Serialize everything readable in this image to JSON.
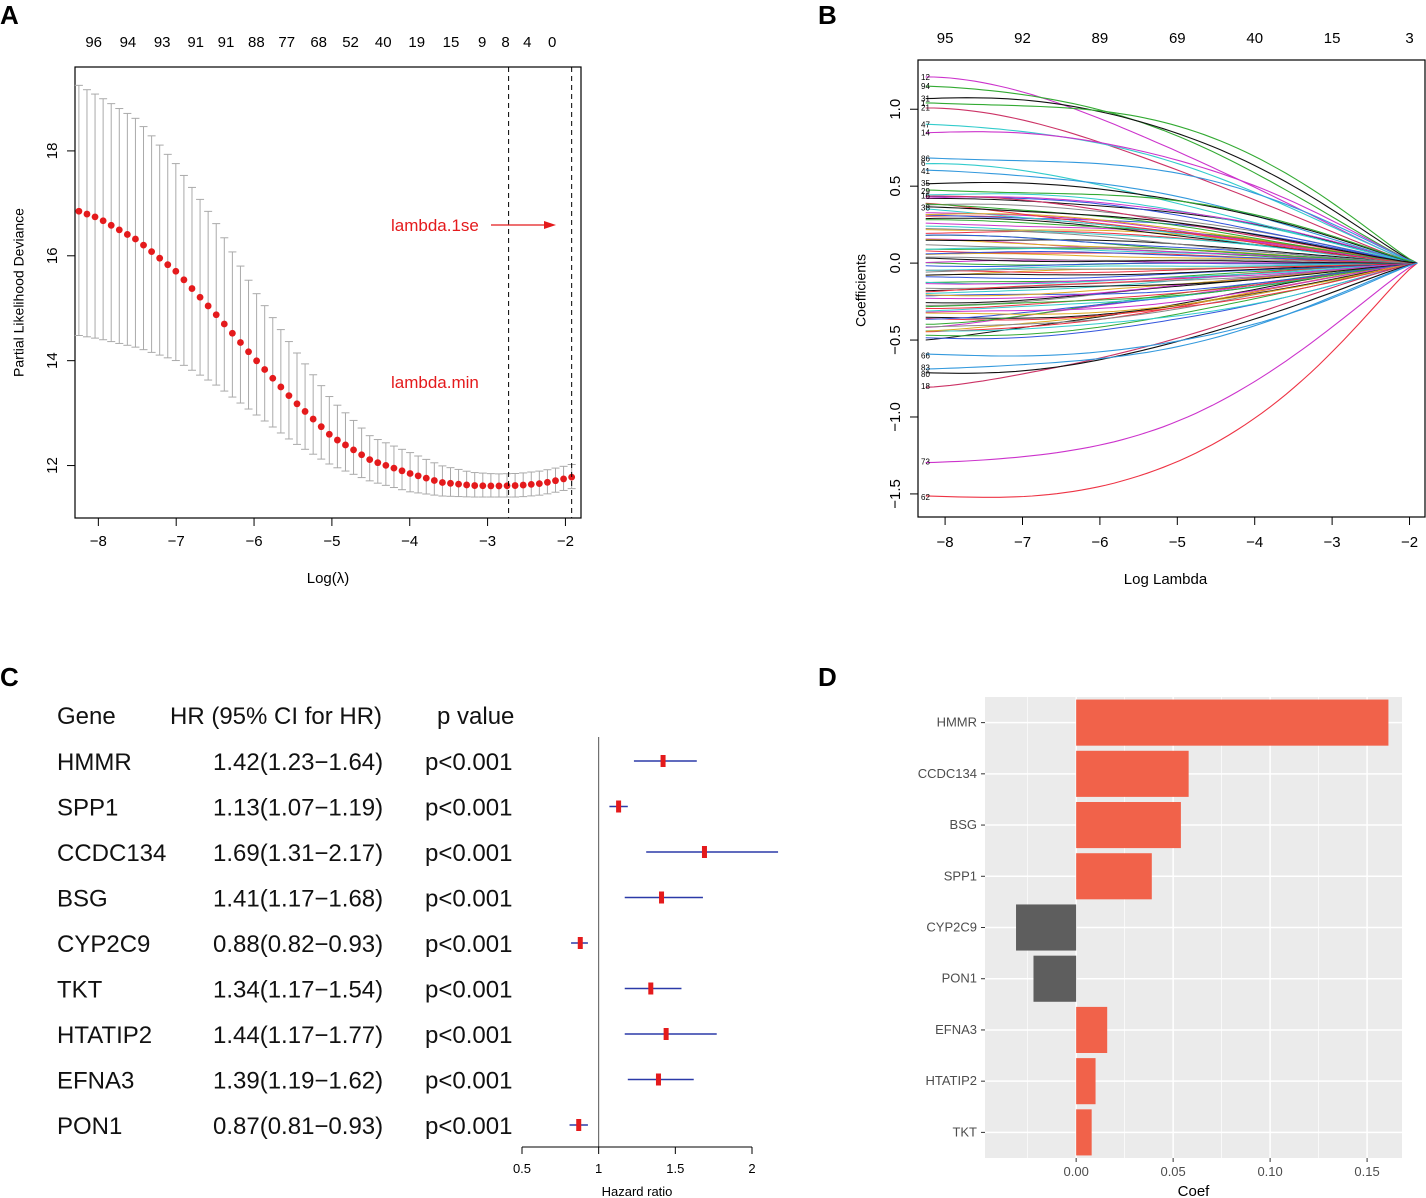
{
  "panels": {
    "A": "A",
    "B": "B",
    "C": "C",
    "D": "D"
  },
  "chart_data": [
    {
      "type": "scatter",
      "panel": "A",
      "xlabel": "Log(λ)",
      "ylabel": "Partial Likelihood Deviance",
      "xlim": [
        -8.3,
        -1.8
      ],
      "ylim": [
        11.0,
        19.6
      ],
      "xticks": [
        -8,
        -7,
        -6,
        -5,
        -4,
        -3,
        -2
      ],
      "xtick_labels": [
        "−8",
        "−7",
        "−6",
        "−5",
        "−4",
        "−3",
        "−2"
      ],
      "yticks": [
        12,
        14,
        16,
        18
      ],
      "ytick_labels": [
        "12",
        "14",
        "16",
        "18"
      ],
      "top_counts": [
        {
          "x": -8.06,
          "label": "96"
        },
        {
          "x": -7.62,
          "label": "94"
        },
        {
          "x": -7.18,
          "label": "93"
        },
        {
          "x": -6.75,
          "label": "91"
        },
        {
          "x": -6.36,
          "label": "91"
        },
        {
          "x": -5.97,
          "label": "88"
        },
        {
          "x": -5.58,
          "label": "77"
        },
        {
          "x": -5.17,
          "label": "68"
        },
        {
          "x": -4.76,
          "label": "52"
        },
        {
          "x": -4.34,
          "label": "40"
        },
        {
          "x": -3.91,
          "label": "19"
        },
        {
          "x": -3.47,
          "label": "15"
        },
        {
          "x": -3.07,
          "label": "9"
        },
        {
          "x": -2.77,
          "label": "8"
        },
        {
          "x": -2.49,
          "label": "4"
        },
        {
          "x": -2.17,
          "label": "0"
        }
      ],
      "points": {
        "x_start": -8.25,
        "x_end": -1.92,
        "n": 62,
        "curve_x": [
          -8.25,
          -8.0,
          -7.5,
          -7.0,
          -6.5,
          -6.0,
          -5.5,
          -5.0,
          -4.5,
          -4.0,
          -3.6,
          -3.2,
          -2.9,
          -2.6,
          -2.3,
          -2.1,
          -1.92
        ],
        "curve_y": [
          16.85,
          16.72,
          16.3,
          15.7,
          14.9,
          14.05,
          13.25,
          12.55,
          12.1,
          11.85,
          11.68,
          11.62,
          11.61,
          11.62,
          11.66,
          11.72,
          11.78
        ],
        "ci_upper_curve": [
          19.25,
          19.05,
          18.6,
          17.75,
          16.65,
          15.35,
          14.25,
          13.25,
          12.55,
          12.25,
          12.0,
          11.87,
          11.84,
          11.85,
          11.9,
          11.96,
          12.02
        ],
        "ci_lower_curve": [
          14.48,
          14.42,
          14.25,
          14.0,
          13.55,
          13.0,
          12.45,
          12.0,
          11.7,
          11.5,
          11.42,
          11.4,
          11.4,
          11.4,
          11.44,
          11.5,
          11.56
        ]
      },
      "vlines": [
        -2.73,
        -1.92
      ],
      "annotations": {
        "lambda_1se": "lambda.1se",
        "lambda_min": "lambda.min"
      }
    },
    {
      "type": "line",
      "panel": "B",
      "xlabel": "Log Lambda",
      "ylabel": "Coefficients",
      "xlim": [
        -8.35,
        -1.8
      ],
      "ylim": [
        -1.65,
        1.32
      ],
      "xticks": [
        -8,
        -7,
        -6,
        -5,
        -4,
        -3,
        -2
      ],
      "xtick_labels": [
        "−8",
        "−7",
        "−6",
        "−5",
        "−4",
        "−3",
        "−2"
      ],
      "yticks": [
        -1.5,
        -1.0,
        -0.5,
        0.0,
        0.5,
        1.0
      ],
      "ytick_labels": [
        "−1.5",
        "−1.0",
        "−0.5",
        "0.0",
        "0.5",
        "1.0"
      ],
      "top_counts": [
        {
          "x": -8.0,
          "label": "95"
        },
        {
          "x": -7.0,
          "label": "92"
        },
        {
          "x": -6.0,
          "label": "89"
        },
        {
          "x": -5.0,
          "label": "69"
        },
        {
          "x": -4.0,
          "label": "40"
        },
        {
          "x": -3.0,
          "label": "15"
        },
        {
          "x": -2.0,
          "label": "3"
        }
      ],
      "labeled_paths": [
        {
          "label": "12",
          "y0": 1.21,
          "color": "#cc33cc"
        },
        {
          "label": "94",
          "y0": 1.15,
          "color": "#33aa33"
        },
        {
          "label": "31",
          "y0": 1.07,
          "color": "#111111"
        },
        {
          "label": "1",
          "y0": 1.04,
          "color": "#33aa33"
        },
        {
          "label": "21",
          "y0": 1.01,
          "color": "#cc3366"
        },
        {
          "label": "47",
          "y0": 0.9,
          "color": "#33cccc"
        },
        {
          "label": "14",
          "y0": 0.85,
          "color": "#cc33cc"
        },
        {
          "label": "86",
          "y0": 0.68,
          "color": "#3399dd"
        },
        {
          "label": "6",
          "y0": 0.65,
          "color": "#33cccc"
        },
        {
          "label": "41",
          "y0": 0.6,
          "color": "#3399dd"
        },
        {
          "label": "35",
          "y0": 0.52,
          "color": "#111111"
        },
        {
          "label": "29",
          "y0": 0.47,
          "color": "#33aa33"
        },
        {
          "label": "16",
          "y0": 0.44,
          "color": "#cc3366"
        },
        {
          "label": "38",
          "y0": 0.36,
          "color": "#111111"
        },
        {
          "label": "73",
          "y0": -1.29,
          "color": "#cc33cc"
        },
        {
          "label": "62",
          "y0": -1.52,
          "color": "#ee3344"
        },
        {
          "label": "18",
          "y0": -0.8,
          "color": "#cc3366"
        },
        {
          "label": "80",
          "y0": -0.72,
          "color": "#111111"
        },
        {
          "label": "83",
          "y0": -0.68,
          "color": "#3399dd"
        },
        {
          "label": "66",
          "y0": -0.6,
          "color": "#3399dd"
        }
      ]
    },
    {
      "type": "forest",
      "panel": "C",
      "columns": [
        "Gene",
        "HR (95% CI for HR)",
        "p value"
      ],
      "xlabel": "Hazard ratio",
      "xlim": [
        0.5,
        2.0
      ],
      "xticks": [
        0.5,
        1,
        1.5,
        2
      ],
      "xtick_labels": [
        "0.5",
        "1",
        "1.5",
        "2"
      ],
      "reference_line": 1,
      "rows": [
        {
          "gene": "HMMR",
          "hr_text": "1.42(1.23−1.64)",
          "p": "p<0.001",
          "hr": 1.42,
          "lo": 1.23,
          "hi": 1.64
        },
        {
          "gene": "SPP1",
          "hr_text": "1.13(1.07−1.19)",
          "p": "p<0.001",
          "hr": 1.13,
          "lo": 1.07,
          "hi": 1.19
        },
        {
          "gene": "CCDC134",
          "hr_text": "1.69(1.31−2.17)",
          "p": "p<0.001",
          "hr": 1.69,
          "lo": 1.31,
          "hi": 2.17
        },
        {
          "gene": "BSG",
          "hr_text": "1.41(1.17−1.68)",
          "p": "p<0.001",
          "hr": 1.41,
          "lo": 1.17,
          "hi": 1.68
        },
        {
          "gene": "CYP2C9",
          "hr_text": "0.88(0.82−0.93)",
          "p": "p<0.001",
          "hr": 0.88,
          "lo": 0.82,
          "hi": 0.93
        },
        {
          "gene": "TKT",
          "hr_text": "1.34(1.17−1.54)",
          "p": "p<0.001",
          "hr": 1.34,
          "lo": 1.17,
          "hi": 1.54
        },
        {
          "gene": "HTATIP2",
          "hr_text": "1.44(1.17−1.77)",
          "p": "p<0.001",
          "hr": 1.44,
          "lo": 1.17,
          "hi": 1.77
        },
        {
          "gene": "EFNA3",
          "hr_text": "1.39(1.19−1.62)",
          "p": "p<0.001",
          "hr": 1.39,
          "lo": 1.19,
          "hi": 1.62
        },
        {
          "gene": "PON1",
          "hr_text": "0.87(0.81−0.93)",
          "p": "p<0.001",
          "hr": 0.87,
          "lo": 0.81,
          "hi": 0.93
        }
      ]
    },
    {
      "type": "bar",
      "panel": "D",
      "orientation": "horizontal",
      "xlabel": "Coef",
      "xlim": [
        -0.047,
        0.168
      ],
      "xticks": [
        0.0,
        0.05,
        0.1,
        0.15
      ],
      "xtick_labels": [
        "0.00",
        "0.05",
        "0.10",
        "0.15"
      ],
      "categories": [
        "HMMR",
        "CCDC134",
        "BSG",
        "SPP1",
        "CYP2C9",
        "PON1",
        "EFNA3",
        "HTATIP2",
        "TKT"
      ],
      "values": [
        0.161,
        0.058,
        0.054,
        0.039,
        -0.031,
        -0.022,
        0.016,
        0.01,
        0.008
      ],
      "colors": {
        "positive": "#f1624a",
        "negative": "#5e5e5e",
        "panel_bg": "#ebebeb",
        "grid": "#ffffff"
      }
    }
  ]
}
